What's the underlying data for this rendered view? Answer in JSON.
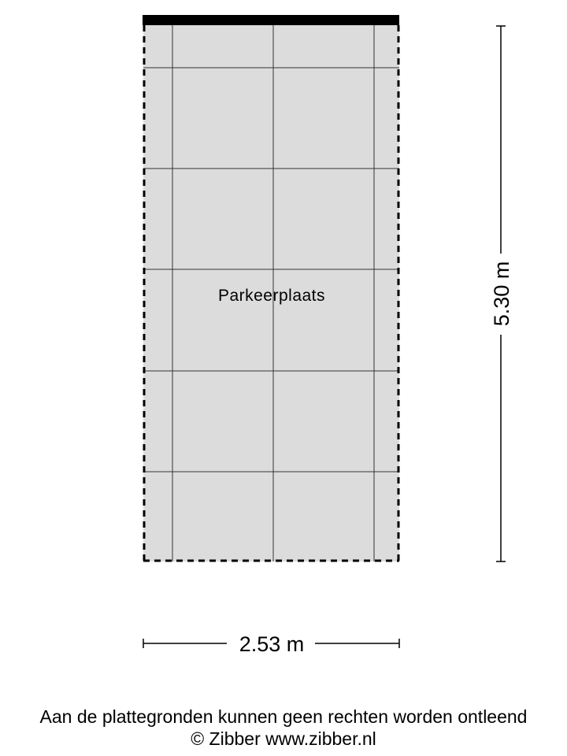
{
  "room": {
    "label": "Parkeerplaats",
    "fill": "#dcdcdc"
  },
  "dimensions": {
    "height": "5.30 m",
    "width": "2.53 m"
  },
  "footer": {
    "disclaimer": "Aan de plattegronden kunnen geen rechten worden ontleend",
    "credit": "© Zibber www.zibber.nl"
  }
}
